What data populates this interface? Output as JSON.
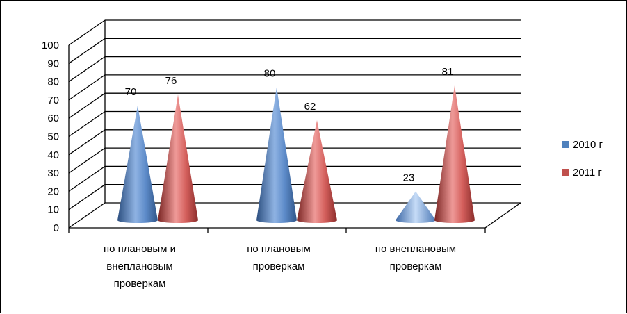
{
  "chart_data": {
    "type": "bar",
    "subtype": "3d-cone",
    "categories": [
      [
        "по плановым и",
        "внеплановым",
        "проверкам"
      ],
      [
        "по плановым",
        "проверкам"
      ],
      [
        "по внеплановым",
        "проверкам"
      ]
    ],
    "series": [
      {
        "name": "2010 г",
        "values": [
          70,
          80,
          23
        ],
        "color": "#4F81BD"
      },
      {
        "name": "2011 г",
        "values": [
          76,
          62,
          81
        ],
        "color": "#C0504D"
      }
    ],
    "yticks": [
      "0",
      "10",
      "20",
      "30",
      "40",
      "50",
      "60",
      "70",
      "80",
      "90",
      "100"
    ],
    "ylim": [
      0,
      100
    ],
    "grid": true,
    "legend_position": "right"
  }
}
